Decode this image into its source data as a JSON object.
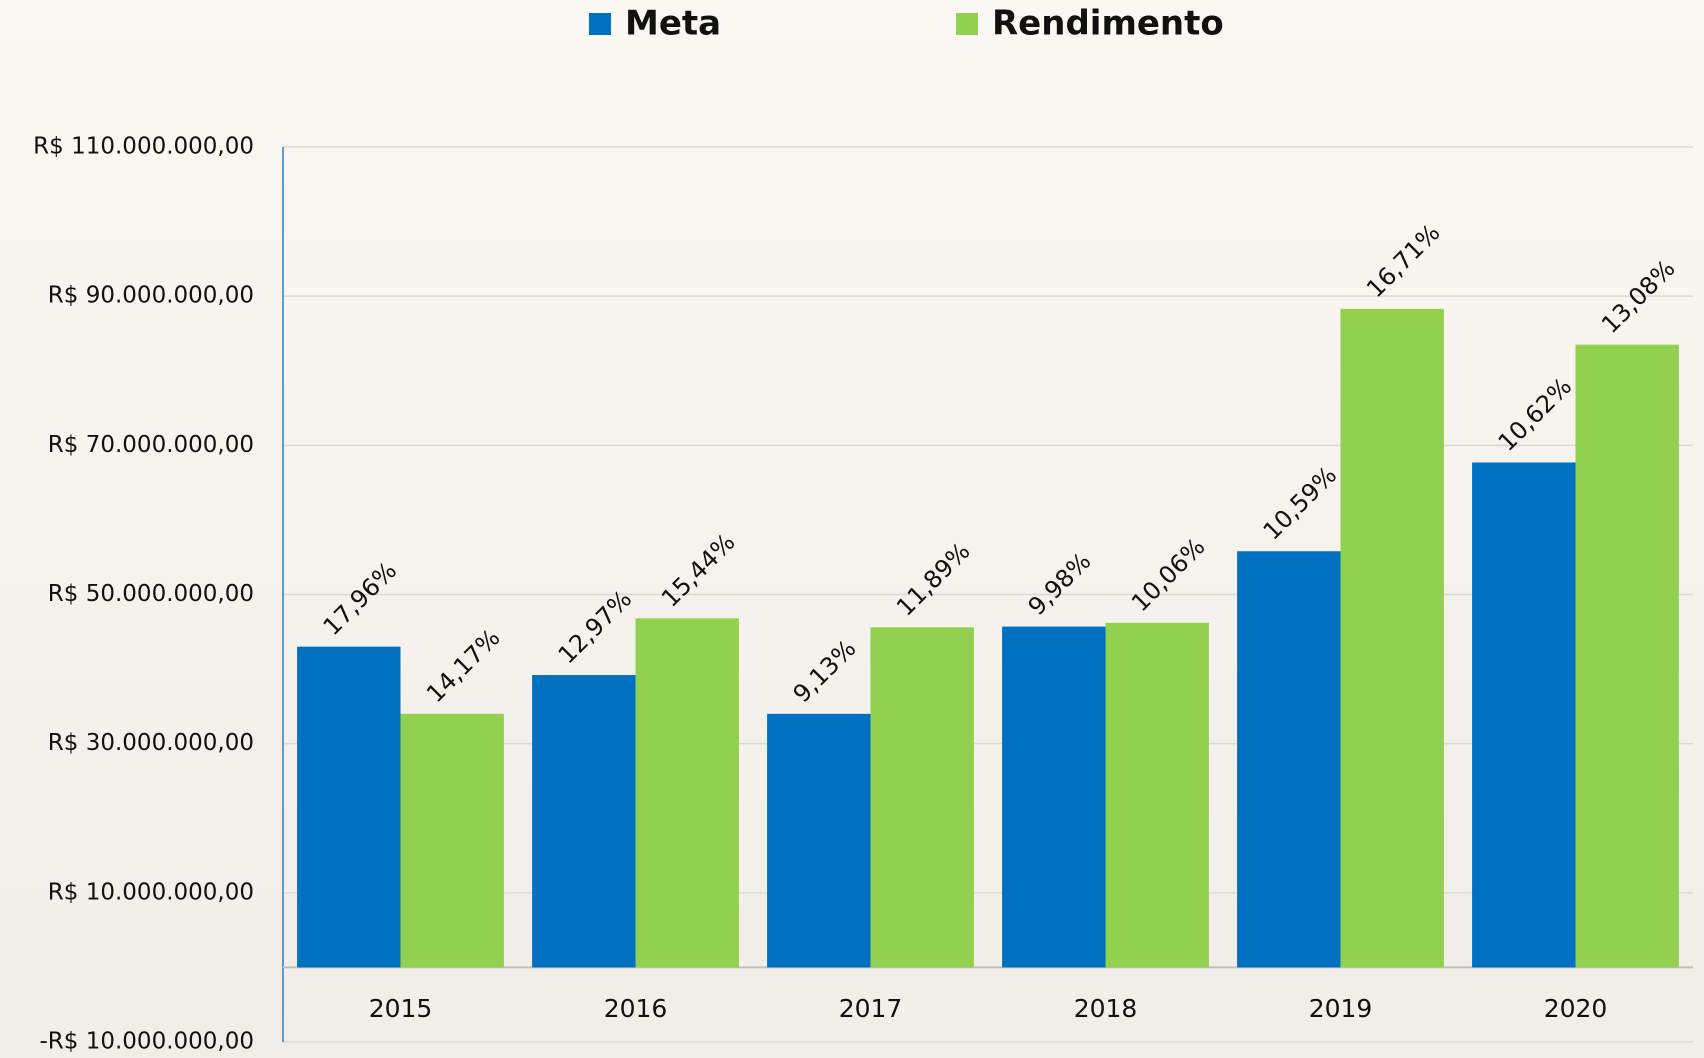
{
  "chart_data": {
    "type": "bar",
    "categories": [
      "2015",
      "2016",
      "2017",
      "2018",
      "2019",
      "2020"
    ],
    "series": [
      {
        "name": "Meta",
        "color": "#0070c0",
        "values": [
          43000000,
          39200000,
          34000000,
          45700000,
          55800000,
          67700000
        ],
        "labels": [
          "17,96%",
          "12,97%",
          "9,13%",
          "9,98%",
          "10,59%",
          "10,62%"
        ]
      },
      {
        "name": "Rendimento",
        "color": "#92d050",
        "values": [
          34000000,
          46800000,
          45600000,
          46200000,
          88300000,
          83500000
        ],
        "labels": [
          "14,17%",
          "15,44%",
          "11,89%",
          "10,06%",
          "16,71%",
          "13,08%"
        ]
      }
    ],
    "ylim": [
      -10000000,
      110000000
    ],
    "yticks": [
      {
        "value": -10000000,
        "label": "-R$ 10.000.000,00"
      },
      {
        "value": 10000000,
        "label": "R$ 10.000.000,00"
      },
      {
        "value": 30000000,
        "label": "R$ 30.000.000,00"
      },
      {
        "value": 50000000,
        "label": "R$ 50.000.000,00"
      },
      {
        "value": 70000000,
        "label": "R$ 70.000.000,00"
      },
      {
        "value": 90000000,
        "label": "R$ 90.000.000,00"
      },
      {
        "value": 110000000,
        "label": "R$ 110.000.000,00"
      }
    ],
    "grid": true,
    "legend": "top"
  }
}
